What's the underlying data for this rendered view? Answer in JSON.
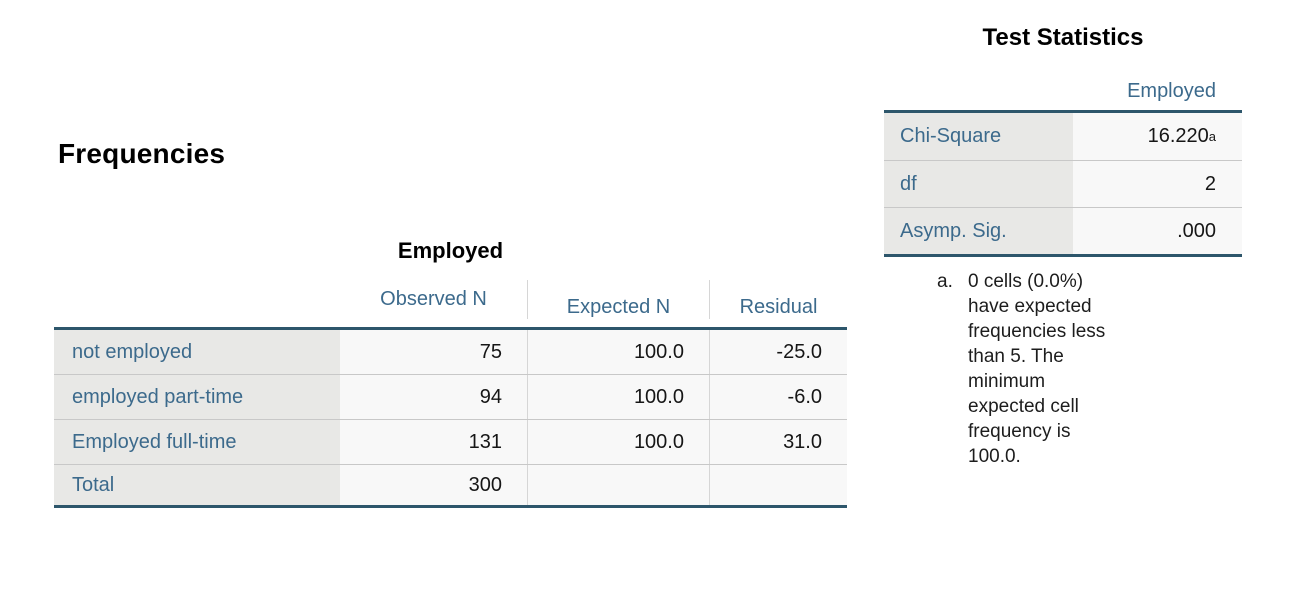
{
  "frequencies": {
    "heading": "Frequencies",
    "table": {
      "title": "Employed",
      "columns": [
        "Observed N",
        "Expected N",
        "Residual"
      ],
      "rows": [
        {
          "label": "not employed",
          "observed_n": "75",
          "expected_n": "100.0",
          "residual": "-25.0"
        },
        {
          "label": "employed part-time",
          "observed_n": "94",
          "expected_n": "100.0",
          "residual": "-6.0"
        },
        {
          "label": "Employed full-time",
          "observed_n": "131",
          "expected_n": "100.0",
          "residual": "31.0"
        },
        {
          "label": "Total",
          "observed_n": "300",
          "expected_n": "",
          "residual": ""
        }
      ]
    }
  },
  "test_statistics": {
    "title": "Test Statistics",
    "column_header": "Employed",
    "rows": [
      {
        "label": "Chi-Square",
        "value": "16.220",
        "superscript": "a"
      },
      {
        "label": "df",
        "value": "2",
        "superscript": ""
      },
      {
        "label": "Asymp. Sig.",
        "value": ".000",
        "superscript": ""
      }
    ],
    "footnote": {
      "marker": "a.",
      "lines": [
        "0 cells (0.0%)",
        "have expected",
        "frequencies less",
        "than 5. The",
        "minimum",
        "expected cell",
        "frequency is",
        "100.0."
      ]
    }
  },
  "colors": {
    "label_text_blue": "#3c6a8c",
    "dark_table_rule": "#2d566b",
    "label_cell_bg": "#e8e8e6",
    "data_cell_bg": "#f8f8f8",
    "row_separator": "#c8c8c8",
    "column_divider": "#d6d6d6"
  }
}
